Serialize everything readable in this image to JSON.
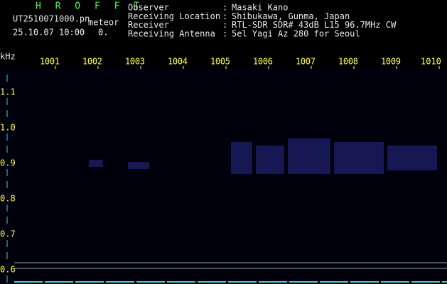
{
  "header": {
    "program": "H R O F F T",
    "file": "UT2510071000.pn",
    "mode": "meteor",
    "datetime": "25.10.07 10:00",
    "count": "0."
  },
  "info": {
    "separator": ":",
    "rows": [
      {
        "label": "Observer",
        "value": "Masaki Kano"
      },
      {
        "label": "Receiving Location",
        "value": "Shibukawa, Gunma, Japan"
      },
      {
        "label": "Receiver",
        "value": "RTL-SDR SDR# 43dB L15 96.7MHz CW"
      },
      {
        "label": "Receiving Antenna",
        "value": "5el Yagi Az 280 for Seoul"
      }
    ]
  },
  "axis": {
    "unit": "kHz",
    "time_labels": [
      "1001",
      "1002",
      "1003",
      "1004",
      "1005",
      "1006",
      "1007",
      "1008",
      "1009",
      "1010"
    ],
    "freq_labels": [
      "1.1",
      "1.0",
      "0.9",
      "0.8",
      "0.7",
      "0.6"
    ]
  }
}
